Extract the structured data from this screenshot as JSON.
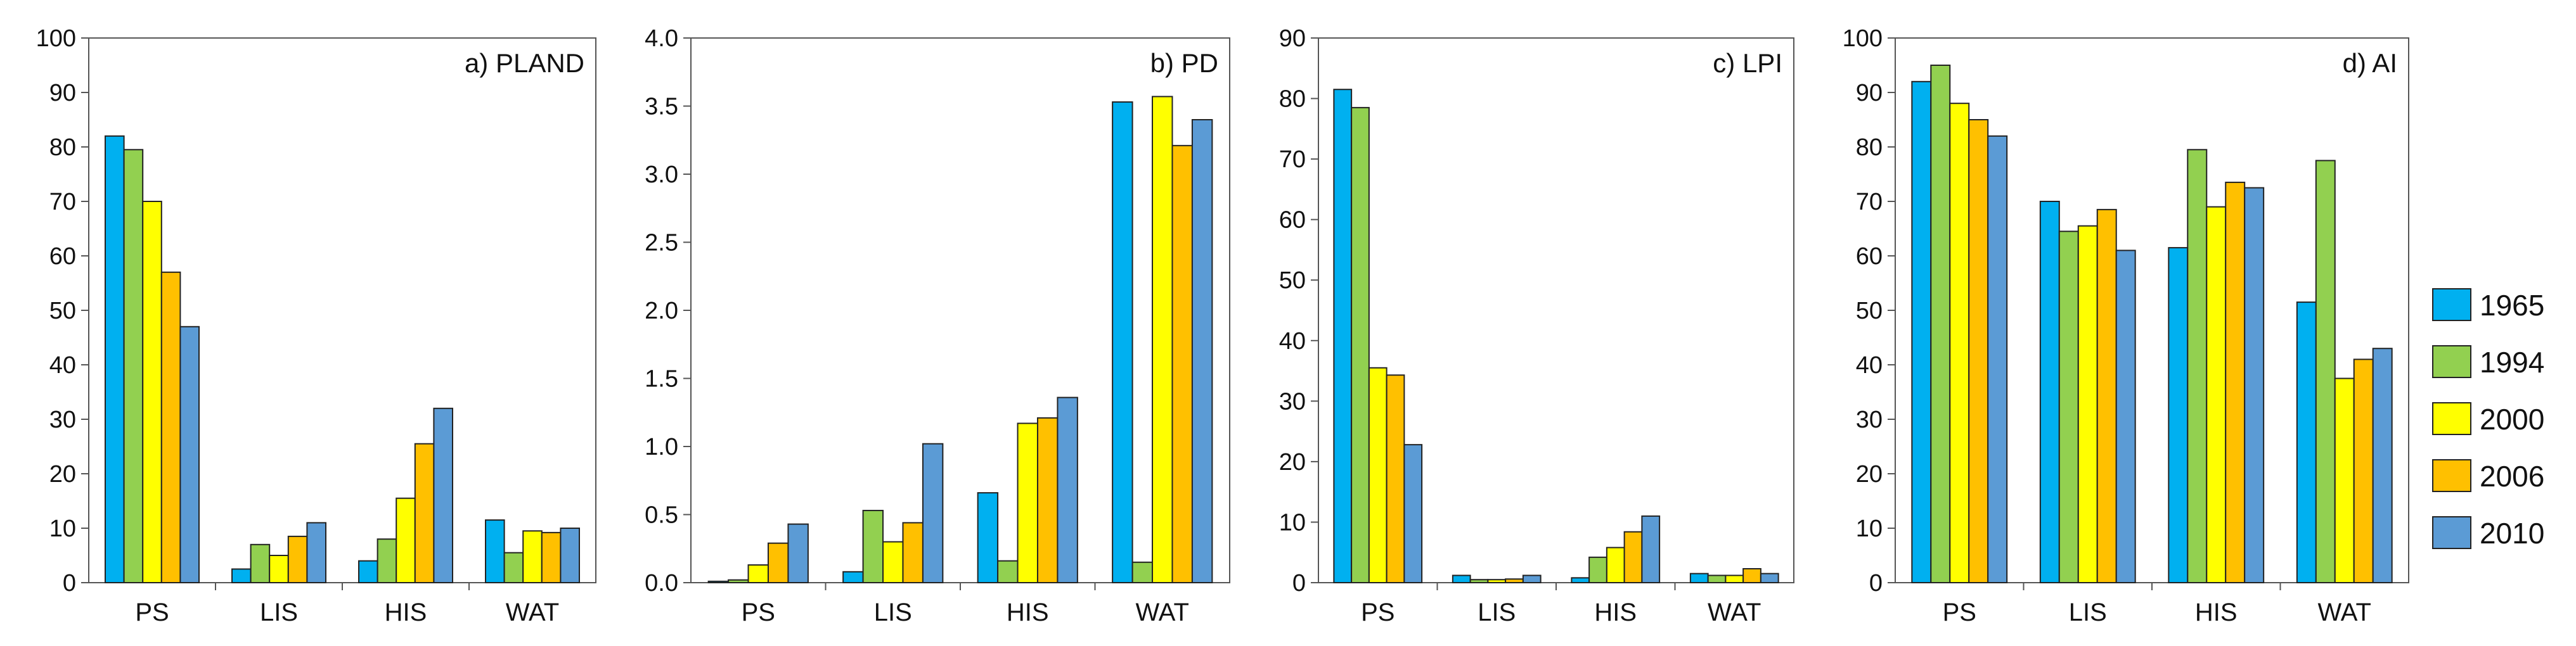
{
  "colors": {
    "1965": "#00b0f0",
    "1994": "#92d050",
    "2000": "#ffff00",
    "2006": "#ffc000",
    "2010": "#5b9bd5"
  },
  "chart_data": [
    {
      "type": "bar",
      "title": "a) PLAND",
      "categories": [
        "PS",
        "LIS",
        "HIS",
        "WAT"
      ],
      "ylim": [
        0,
        100
      ],
      "yticks": [
        "0",
        "10",
        "20",
        "30",
        "40",
        "50",
        "60",
        "70",
        "80",
        "90",
        "100"
      ],
      "legend": "right",
      "series": [
        {
          "name": "1965",
          "values": [
            82,
            2.5,
            4,
            11.5
          ]
        },
        {
          "name": "1994",
          "values": [
            79.5,
            7,
            8,
            5.5
          ]
        },
        {
          "name": "2000",
          "values": [
            70,
            5,
            15.5,
            9.5
          ]
        },
        {
          "name": "2006",
          "values": [
            57,
            8.5,
            25.5,
            9.2
          ]
        },
        {
          "name": "2010",
          "values": [
            47,
            11,
            32,
            10
          ]
        }
      ]
    },
    {
      "type": "bar",
      "title": "b) PD",
      "categories": [
        "PS",
        "LIS",
        "HIS",
        "WAT"
      ],
      "ylim": [
        0,
        4
      ],
      "yticks": [
        "0.0",
        "0.5",
        "1.0",
        "1.5",
        "2.0",
        "2.5",
        "3.0",
        "3.5",
        "4.0"
      ],
      "legend": "right",
      "series": [
        {
          "name": "1965",
          "values": [
            0.01,
            0.08,
            0.66,
            3.53
          ]
        },
        {
          "name": "1994",
          "values": [
            0.02,
            0.53,
            0.16,
            0.15
          ]
        },
        {
          "name": "2000",
          "values": [
            0.13,
            0.3,
            1.17,
            3.57
          ]
        },
        {
          "name": "2006",
          "values": [
            0.29,
            0.44,
            1.21,
            3.21
          ]
        },
        {
          "name": "2010",
          "values": [
            0.43,
            1.02,
            1.36,
            3.4
          ]
        }
      ]
    },
    {
      "type": "bar",
      "title": "c) LPI",
      "categories": [
        "PS",
        "LIS",
        "HIS",
        "WAT"
      ],
      "ylim": [
        0,
        90
      ],
      "yticks": [
        "0",
        "10",
        "20",
        "30",
        "40",
        "50",
        "60",
        "70",
        "80",
        "90"
      ],
      "legend": "right",
      "series": [
        {
          "name": "1965",
          "values": [
            81.5,
            1.2,
            0.8,
            1.5
          ]
        },
        {
          "name": "1994",
          "values": [
            78.5,
            0.5,
            4.2,
            1.2
          ]
        },
        {
          "name": "2000",
          "values": [
            35.5,
            0.5,
            5.8,
            1.2
          ]
        },
        {
          "name": "2006",
          "values": [
            34.3,
            0.6,
            8.4,
            2.3
          ]
        },
        {
          "name": "2010",
          "values": [
            22.8,
            1.2,
            11,
            1.5
          ]
        }
      ]
    },
    {
      "type": "bar",
      "title": "d) AI",
      "categories": [
        "PS",
        "LIS",
        "HIS",
        "WAT"
      ],
      "ylim": [
        0,
        100
      ],
      "yticks": [
        "0",
        "10",
        "20",
        "30",
        "40",
        "50",
        "60",
        "70",
        "80",
        "90",
        "100"
      ],
      "legend": "right",
      "series": [
        {
          "name": "1965",
          "values": [
            92,
            70,
            61.5,
            51.5
          ]
        },
        {
          "name": "1994",
          "values": [
            95,
            64.5,
            79.5,
            77.5
          ]
        },
        {
          "name": "2000",
          "values": [
            88,
            65.5,
            69,
            37.5
          ]
        },
        {
          "name": "2006",
          "values": [
            85,
            68.5,
            73.5,
            41
          ]
        },
        {
          "name": "2010",
          "values": [
            82,
            61,
            72.5,
            43
          ]
        }
      ]
    }
  ],
  "legend": {
    "items": [
      {
        "label": "1965",
        "color": "#00b0f0"
      },
      {
        "label": "1994",
        "color": "#92d050"
      },
      {
        "label": "2000",
        "color": "#ffff00"
      },
      {
        "label": "2006",
        "color": "#ffc000"
      },
      {
        "label": "2010",
        "color": "#5b9bd5"
      }
    ]
  }
}
